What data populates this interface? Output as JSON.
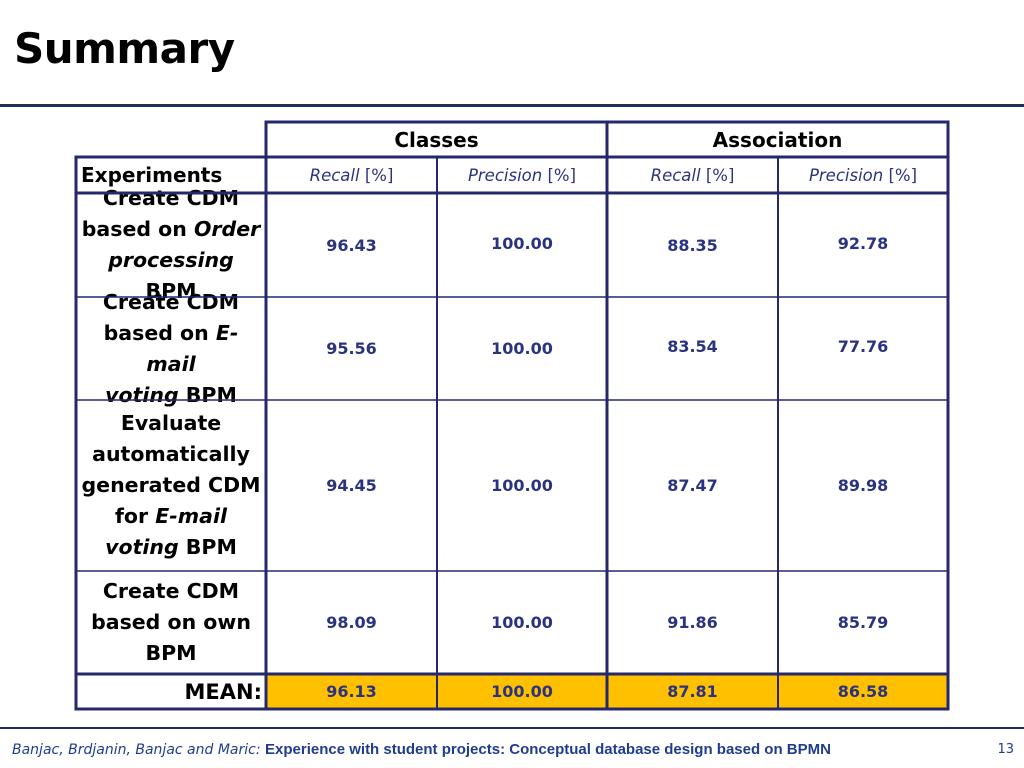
{
  "title": "Summary",
  "table": {
    "groups": [
      "Classes",
      "Association"
    ],
    "experiments_header": "Experiments",
    "sub_headers": [
      {
        "italic": "Recall",
        "unit": "[%]"
      },
      {
        "italic": "Precision",
        "unit": "[%]"
      },
      {
        "italic": "Recall",
        "unit": "[%]"
      },
      {
        "italic": "Precision",
        "unit": "[%]"
      }
    ],
    "rows": [
      {
        "label": [
          "Create CDM",
          "based on ",
          "Order",
          " ",
          "processing",
          " BPM"
        ],
        "values": [
          "96.43",
          "100.00",
          "88.35",
          "92.78"
        ]
      },
      {
        "label": [
          "Create CDM",
          "based on ",
          "E-mail",
          " ",
          "voting",
          " BPM"
        ],
        "values": [
          "95.56",
          "100.00",
          "83.54",
          "77.76"
        ]
      },
      {
        "label": [
          "Evaluate automatically generated CDM for ",
          "E-mail",
          " ",
          "voting",
          " BPM"
        ],
        "values": [
          "94.45",
          "100.00",
          "87.47",
          "89.98"
        ]
      },
      {
        "label": [
          "Create CDM based on own BPM"
        ],
        "values": [
          "98.09",
          "100.00",
          "91.86",
          "85.79"
        ]
      }
    ],
    "mean_label": "MEAN:",
    "mean_values": [
      "96.13",
      "100.00",
      "87.81",
      "86.58"
    ]
  },
  "footer": {
    "authors": "Banjac, Brdjanin, Banjac and Maric:",
    "paper_title": "Experience with student projects: Conceptual database design based on BPMN",
    "page_number": "13"
  },
  "colors": {
    "rule": "#1f2d5c",
    "highlight": "#ffc000",
    "value_text": "#2a3380"
  }
}
